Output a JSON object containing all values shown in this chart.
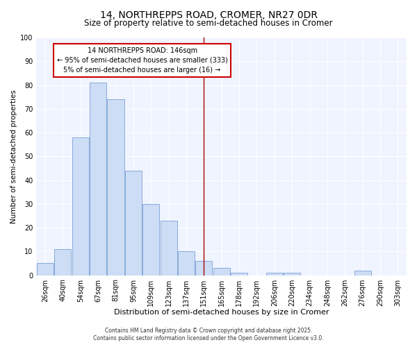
{
  "title": "14, NORTHREPPS ROAD, CROMER, NR27 0DR",
  "subtitle": "Size of property relative to semi-detached houses in Cromer",
  "xlabel": "Distribution of semi-detached houses by size in Cromer",
  "ylabel": "Number of semi-detached properties",
  "categories": [
    "26sqm",
    "40sqm",
    "54sqm",
    "67sqm",
    "81sqm",
    "95sqm",
    "109sqm",
    "123sqm",
    "137sqm",
    "151sqm",
    "165sqm",
    "178sqm",
    "192sqm",
    "206sqm",
    "220sqm",
    "234sqm",
    "248sqm",
    "262sqm",
    "276sqm",
    "290sqm",
    "303sqm"
  ],
  "values": [
    5,
    11,
    58,
    81,
    74,
    44,
    30,
    23,
    10,
    6,
    3,
    1,
    0,
    1,
    1,
    0,
    0,
    0,
    2,
    0,
    0
  ],
  "bar_color": "#ccddf5",
  "bar_edge_color": "#88aad8",
  "vline_color": "#aa0000",
  "vline_x_index": 9,
  "annotation_line1": "14 NORTHREPPS ROAD: 146sqm",
  "annotation_line2": "← 95% of semi-detached houses are smaller (333)",
  "annotation_line3": "5% of semi-detached houses are larger (16) →",
  "annotation_box_color": "#ffffff",
  "annotation_box_edge": "#cc0000",
  "ylim": [
    0,
    100
  ],
  "yticks": [
    0,
    10,
    20,
    30,
    40,
    50,
    60,
    70,
    80,
    90,
    100
  ],
  "footer1": "Contains HM Land Registry data © Crown copyright and database right 2025.",
  "footer2": "Contains public sector information licensed under the Open Government Licence v3.0.",
  "background_color": "#ffffff",
  "plot_background": "#f0f4ff",
  "grid_color": "#ffffff",
  "title_fontsize": 10,
  "subtitle_fontsize": 8.5,
  "xlabel_fontsize": 8,
  "ylabel_fontsize": 7.5,
  "tick_fontsize": 7,
  "annotation_fontsize": 7,
  "footer_fontsize": 5.5
}
